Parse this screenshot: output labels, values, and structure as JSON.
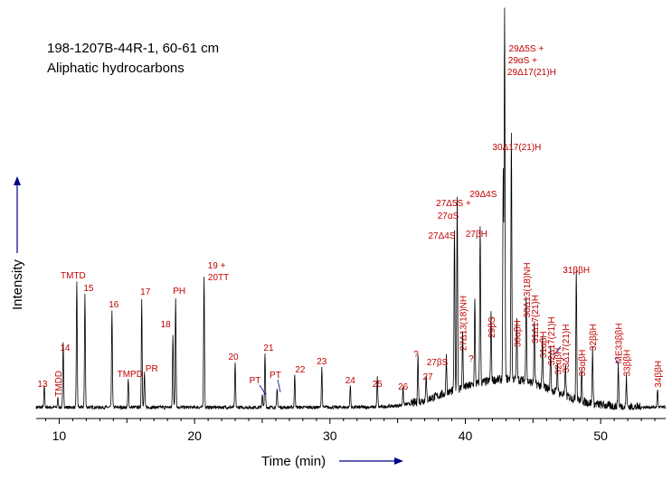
{
  "header": {
    "sample": "198-1207B-44R-1, 60-61 cm",
    "subtitle": "Aliphatic hydrocarbons"
  },
  "colors": {
    "trace": "#000000",
    "peak_label": "#c00000",
    "arrow": "#00008b"
  },
  "chart_data": {
    "type": "line",
    "title": "198-1207B-44R-1, 60-61 cm",
    "subtitle": "Aliphatic hydrocarbons",
    "xlabel": "Time (min)",
    "ylabel": "Intensity",
    "xlim": [
      8.3,
      54.8
    ],
    "ylim": [
      0,
      100
    ],
    "xticks": [
      10,
      20,
      30,
      40,
      50
    ],
    "grid": false,
    "peaks": [
      {
        "x": 8.9,
        "y": 6.0,
        "label": "13",
        "sup": ""
      },
      {
        "x": 9.9,
        "y": 2.5,
        "label": "TMDD",
        "sup": ""
      },
      {
        "x": 10.3,
        "y": 17.5,
        "label": "14",
        "sup": ""
      },
      {
        "x": 11.3,
        "y": 34.5,
        "label": "TMTD",
        "sup": ""
      },
      {
        "x": 11.9,
        "y": 31.0,
        "label": "15",
        "sup": ""
      },
      {
        "x": 13.9,
        "y": 26.5,
        "label": "16",
        "sup": ""
      },
      {
        "x": 15.1,
        "y": 7.5,
        "label": "TMPD",
        "sup": ""
      },
      {
        "x": 16.1,
        "y": 29.5,
        "label": "17",
        "sup": ""
      },
      {
        "x": 16.3,
        "y": 9.5,
        "label": "PR",
        "sup": ""
      },
      {
        "x": 18.4,
        "y": 20.0,
        "label": "18",
        "sup": ""
      },
      {
        "x": 18.6,
        "y": 30.0,
        "label": "PH",
        "sup": ""
      },
      {
        "x": 20.7,
        "y": 36.0,
        "label": "19 + 20TT",
        "sup": ""
      },
      {
        "x": 23.0,
        "y": 12.0,
        "label": "20",
        "sup": ""
      },
      {
        "x": 25.0,
        "y": 3.5,
        "label": "PT",
        "sup": ""
      },
      {
        "x": 25.2,
        "y": 14.5,
        "label": "21",
        "sup": ""
      },
      {
        "x": 26.1,
        "y": 5.0,
        "label": "PT",
        "sup": ""
      },
      {
        "x": 27.4,
        "y": 9.0,
        "label": "22",
        "sup": ""
      },
      {
        "x": 29.4,
        "y": 11.0,
        "label": "23",
        "sup": ""
      },
      {
        "x": 31.5,
        "y": 6.0,
        "label": "24",
        "sup": ""
      },
      {
        "x": 33.5,
        "y": 8.0,
        "label": "25",
        "sup": ""
      },
      {
        "x": 35.4,
        "y": 4.5,
        "label": "26",
        "sup": ""
      },
      {
        "x": 36.5,
        "y": 12.5,
        "label": "?",
        "sup": ""
      },
      {
        "x": 37.1,
        "y": 7.0,
        "label": "27",
        "sup": ""
      },
      {
        "x": 38.6,
        "y": 10.0,
        "label": "27βS",
        "sup": ""
      },
      {
        "x": 39.2,
        "y": 44.0,
        "label": "27Δ4S",
        "sup": ""
      },
      {
        "x": 39.4,
        "y": 52.5,
        "label": "27Δ5S + 27αS",
        "sup": ""
      },
      {
        "x": 39.8,
        "y": 15.0,
        "label": "27Δ13(18)NH",
        "sup": ""
      },
      {
        "x": 40.7,
        "y": 23.0,
        "label": "?",
        "sup": ""
      },
      {
        "x": 41.1,
        "y": 43.5,
        "label": "27βH",
        "sup": ""
      },
      {
        "x": 41.9,
        "y": 18.5,
        "label": "29βS",
        "sup": ""
      },
      {
        "x": 42.8,
        "y": 56.0,
        "label": "29Δ4S",
        "sup": ""
      },
      {
        "x": 42.9,
        "y": 100.0,
        "label": "29Δ5S + 29αS + 29Δ17(21)H",
        "sup": ""
      },
      {
        "x": 43.4,
        "y": 68.0,
        "label": "30Δ17(21)H",
        "sup": ""
      },
      {
        "x": 43.8,
        "y": 16.0,
        "label": "30αβH",
        "sup": ""
      },
      {
        "x": 44.5,
        "y": 24.0,
        "label": "30Δ13(18)NH",
        "sup": ""
      },
      {
        "x": 45.1,
        "y": 17.0,
        "label": "31Δ17(21)H",
        "sup": ""
      },
      {
        "x": 45.7,
        "y": 13.0,
        "label": "31αβH",
        "sup": ""
      },
      {
        "x": 46.3,
        "y": 11.0,
        "label": "32Δ17(21)H",
        "sup": ""
      },
      {
        "x": 46.8,
        "y": 8.5,
        "label": "32αβH",
        "sup": ""
      },
      {
        "x": 47.4,
        "y": 9.0,
        "label": "33Δ17(21)H",
        "sup": ""
      },
      {
        "x": 48.2,
        "y": 36.0,
        "label": "31ββH",
        "sup": ""
      },
      {
        "x": 48.6,
        "y": 8.0,
        "label": "33αβH",
        "sup": ""
      },
      {
        "x": 49.4,
        "y": 15.0,
        "label": "32ββH",
        "sup": ""
      },
      {
        "x": 51.3,
        "y": 11.5,
        "label": "ME33ββH",
        "sup": ""
      },
      {
        "x": 51.9,
        "y": 8.0,
        "label": "33ββH",
        "sup": ""
      },
      {
        "x": 54.2,
        "y": 5.0,
        "label": "34ββH",
        "sup": ""
      }
    ]
  }
}
